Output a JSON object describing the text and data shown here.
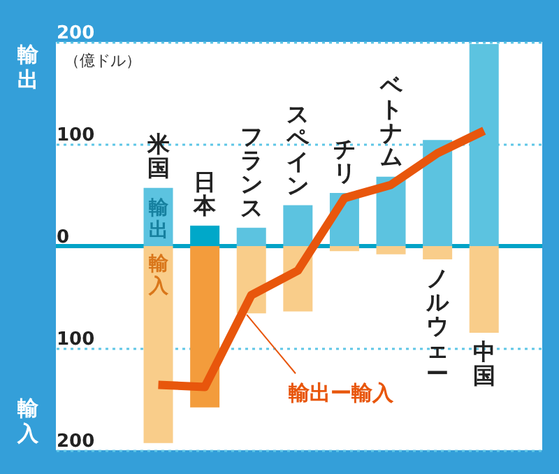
{
  "chart_data": {
    "type": "bar",
    "stacked": true,
    "categories": [
      "米国",
      "日本",
      "フランス",
      "スペイン",
      "チリ",
      "ベトナム",
      "ノルウェー",
      "中国"
    ],
    "series": [
      {
        "name": "輸出",
        "color": "#5cc3e0",
        "colors": [
          null,
          "#00a8c9",
          null,
          null,
          null,
          null,
          null,
          null
        ],
        "values": [
          57,
          20,
          18,
          40,
          52,
          68,
          104,
          198
        ]
      },
      {
        "name": "輸入",
        "color": "#f9cd8a",
        "colors": [
          null,
          "#f39c3c",
          null,
          null,
          null,
          null,
          null,
          null
        ],
        "values": [
          -193,
          -158,
          -66,
          -64,
          -5,
          -8,
          -13,
          -85
        ]
      },
      {
        "name": "輸出ー輸入",
        "type": "line",
        "color": "#e8560c",
        "values": [
          -136,
          -138,
          -48,
          -24,
          47,
          60,
          91,
          113
        ]
      }
    ],
    "ylim": [
      -200,
      200
    ],
    "yticks": [
      {
        "value": -200,
        "label": "200"
      },
      {
        "value": -100,
        "label": "100"
      },
      0,
      100,
      200
    ],
    "grid": "y",
    "line_style": "solid",
    "marker": "none",
    "annotations": [
      "（億ドル）",
      "輸出",
      "輸入"
    ]
  }
}
